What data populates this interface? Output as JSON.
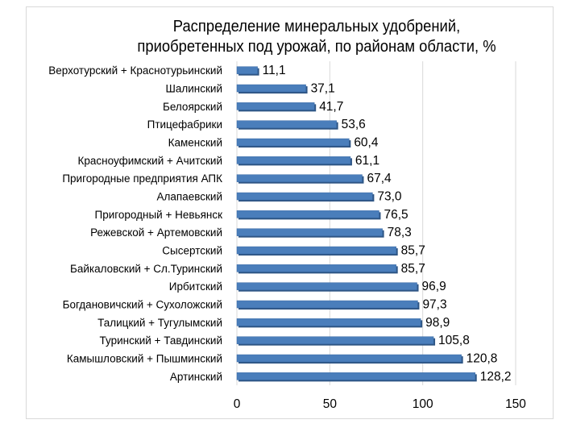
{
  "chart_data": {
    "type": "bar",
    "orientation": "horizontal",
    "title_lines": [
      "Распределение минеральных удобрений,",
      "приобретенных под урожай, по районам области, %"
    ],
    "categories": [
      "Верхотурский + Краснотурьинский",
      "Шалинский",
      "Белоярский",
      "Птицефабрики",
      "Каменский",
      "Красноуфимский + Ачитский",
      "Пригородные  предприятия АПК",
      "Алапаевский",
      "Пригородный + Невьянск",
      "Режевской + Артемовский",
      "Сысертский",
      "Байкаловский + Сл.Туринский",
      "Ирбитский",
      "Богдановичский + Сухоложский",
      "Талицкий + Тугулымский",
      "Туринский + Тавдинский",
      "Камышловский + Пышминский",
      "Артинский"
    ],
    "values": [
      11.1,
      37.1,
      41.7,
      53.6,
      60.4,
      61.1,
      67.4,
      73.0,
      76.5,
      78.3,
      85.7,
      85.7,
      96.9,
      97.3,
      98.9,
      105.8,
      120.8,
      128.2
    ],
    "value_labels": [
      "11,1",
      "37,1",
      "41,7",
      "53,6",
      "60,4",
      "61,1",
      "67,4",
      "73,0",
      "76,5",
      "78,3",
      "85,7",
      "85,7",
      "96,9",
      "97,3",
      "98,9",
      "105,8",
      "120,8",
      "128,2"
    ],
    "xlim": [
      0,
      150
    ],
    "x_ticks": [
      0,
      50,
      100,
      150
    ],
    "x_tick_labels": [
      "0",
      "50",
      "100",
      "150"
    ],
    "grid": "vertical",
    "bar_color": "#4a7ebb",
    "bar_shadow_color": "#2e5584",
    "grid_color": "#d9d9d9"
  }
}
